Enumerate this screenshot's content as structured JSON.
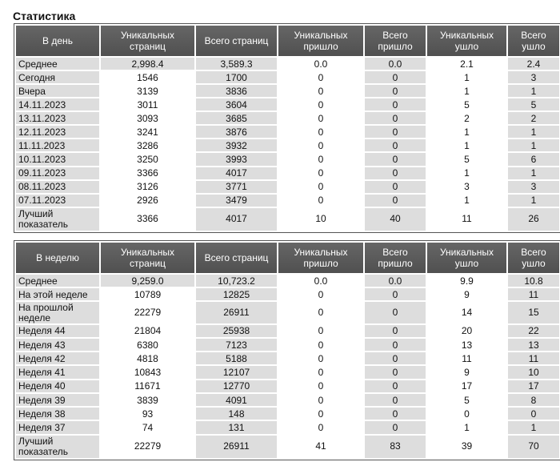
{
  "page": {
    "title": "Статистика"
  },
  "daily": {
    "headers": [
      "В день",
      "Уникальных страниц",
      "Всего страниц",
      "Уникальных пришло",
      "Всего пришло",
      "Уникальных ушло",
      "Всего ушло"
    ],
    "rows": [
      {
        "label": "Среднее",
        "unique_pages": "2,998.4",
        "total_pages": "3,589.3",
        "unique_in": "0.0",
        "total_in": "0.0",
        "unique_out": "2.1",
        "total_out": "2.4"
      },
      {
        "label": "Сегодня",
        "unique_pages": "1546",
        "total_pages": "1700",
        "unique_in": "0",
        "total_in": "0",
        "unique_out": "1",
        "total_out": "3"
      },
      {
        "label": "Вчера",
        "unique_pages": "3139",
        "total_pages": "3836",
        "unique_in": "0",
        "total_in": "0",
        "unique_out": "1",
        "total_out": "1"
      },
      {
        "label": "14.11.2023",
        "unique_pages": "3011",
        "total_pages": "3604",
        "unique_in": "0",
        "total_in": "0",
        "unique_out": "5",
        "total_out": "5"
      },
      {
        "label": "13.11.2023",
        "unique_pages": "3093",
        "total_pages": "3685",
        "unique_in": "0",
        "total_in": "0",
        "unique_out": "2",
        "total_out": "2"
      },
      {
        "label": "12.11.2023",
        "unique_pages": "3241",
        "total_pages": "3876",
        "unique_in": "0",
        "total_in": "0",
        "unique_out": "1",
        "total_out": "1"
      },
      {
        "label": "11.11.2023",
        "unique_pages": "3286",
        "total_pages": "3932",
        "unique_in": "0",
        "total_in": "0",
        "unique_out": "1",
        "total_out": "1"
      },
      {
        "label": "10.11.2023",
        "unique_pages": "3250",
        "total_pages": "3993",
        "unique_in": "0",
        "total_in": "0",
        "unique_out": "5",
        "total_out": "6"
      },
      {
        "label": "09.11.2023",
        "unique_pages": "3366",
        "total_pages": "4017",
        "unique_in": "0",
        "total_in": "0",
        "unique_out": "1",
        "total_out": "1"
      },
      {
        "label": "08.11.2023",
        "unique_pages": "3126",
        "total_pages": "3771",
        "unique_in": "0",
        "total_in": "0",
        "unique_out": "3",
        "total_out": "3"
      },
      {
        "label": "07.11.2023",
        "unique_pages": "2926",
        "total_pages": "3479",
        "unique_in": "0",
        "total_in": "0",
        "unique_out": "1",
        "total_out": "1"
      },
      {
        "label": "Лучший показатель",
        "unique_pages": "3366",
        "total_pages": "4017",
        "unique_in": "10",
        "total_in": "40",
        "unique_out": "11",
        "total_out": "26"
      }
    ]
  },
  "weekly": {
    "headers": [
      "В неделю",
      "Уникальных страниц",
      "Всего страниц",
      "Уникальных пришло",
      "Всего пришло",
      "Уникальных ушло",
      "Всего ушло"
    ],
    "rows": [
      {
        "label": "Среднее",
        "unique_pages": "9,259.0",
        "total_pages": "10,723.2",
        "unique_in": "0.0",
        "total_in": "0.0",
        "unique_out": "9.9",
        "total_out": "10.8"
      },
      {
        "label": "На этой неделе",
        "unique_pages": "10789",
        "total_pages": "12825",
        "unique_in": "0",
        "total_in": "0",
        "unique_out": "9",
        "total_out": "11"
      },
      {
        "label": "На прошлой неделе",
        "unique_pages": "22279",
        "total_pages": "26911",
        "unique_in": "0",
        "total_in": "0",
        "unique_out": "14",
        "total_out": "15"
      },
      {
        "label": "Неделя 44",
        "unique_pages": "21804",
        "total_pages": "25938",
        "unique_in": "0",
        "total_in": "0",
        "unique_out": "20",
        "total_out": "22"
      },
      {
        "label": "Неделя 43",
        "unique_pages": "6380",
        "total_pages": "7123",
        "unique_in": "0",
        "total_in": "0",
        "unique_out": "13",
        "total_out": "13"
      },
      {
        "label": "Неделя 42",
        "unique_pages": "4818",
        "total_pages": "5188",
        "unique_in": "0",
        "total_in": "0",
        "unique_out": "11",
        "total_out": "11"
      },
      {
        "label": "Неделя 41",
        "unique_pages": "10843",
        "total_pages": "12107",
        "unique_in": "0",
        "total_in": "0",
        "unique_out": "9",
        "total_out": "10"
      },
      {
        "label": "Неделя 40",
        "unique_pages": "11671",
        "total_pages": "12770",
        "unique_in": "0",
        "total_in": "0",
        "unique_out": "17",
        "total_out": "17"
      },
      {
        "label": "Неделя 39",
        "unique_pages": "3839",
        "total_pages": "4091",
        "unique_in": "0",
        "total_in": "0",
        "unique_out": "5",
        "total_out": "8"
      },
      {
        "label": "Неделя 38",
        "unique_pages": "93",
        "total_pages": "148",
        "unique_in": "0",
        "total_in": "0",
        "unique_out": "0",
        "total_out": "0"
      },
      {
        "label": "Неделя 37",
        "unique_pages": "74",
        "total_pages": "131",
        "unique_in": "0",
        "total_in": "0",
        "unique_out": "1",
        "total_out": "1"
      },
      {
        "label": "Лучший показатель",
        "unique_pages": "22279",
        "total_pages": "26911",
        "unique_in": "41",
        "total_in": "83",
        "unique_out": "39",
        "total_out": "70"
      }
    ]
  }
}
